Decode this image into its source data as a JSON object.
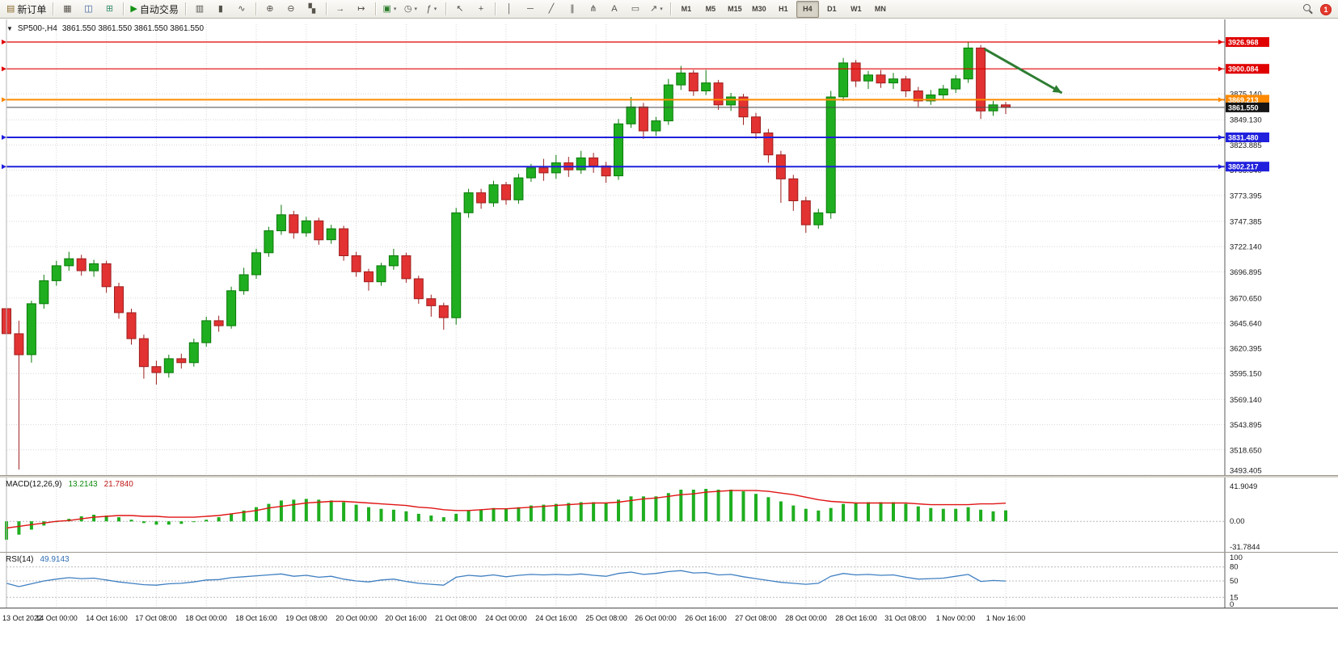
{
  "window": {
    "notifications": "1"
  },
  "toolbar": {
    "groups": [
      {
        "name": "order",
        "items": [
          {
            "name": "new-order-button",
            "label": "新订单",
            "icon": "new-order-icon"
          }
        ]
      },
      {
        "name": "panels",
        "items": [
          {
            "name": "market-depth-button",
            "icon": "book-icon"
          },
          {
            "name": "data-window-button",
            "icon": "window-icon"
          },
          {
            "name": "strategy-tester-button",
            "icon": "tester-icon"
          }
        ]
      },
      {
        "name": "algo",
        "items": [
          {
            "name": "algo-trading-button",
            "label": "自动交易",
            "icon": "play-icon"
          }
        ]
      },
      {
        "name": "chart-type",
        "items": [
          {
            "name": "bar-chart-button",
            "icon": "bars-icon"
          },
          {
            "name": "candle-chart-button",
            "icon": "candles-icon"
          },
          {
            "name": "line-chart-button",
            "icon": "line-icon"
          }
        ]
      },
      {
        "name": "zoom",
        "items": [
          {
            "name": "zoom-in-button",
            "icon": "zoom-in-icon"
          },
          {
            "name": "zoom-out-button",
            "icon": "zoom-out-icon"
          },
          {
            "name": "tile-windows-button",
            "icon": "tile-icon"
          }
        ]
      },
      {
        "name": "scroll",
        "items": [
          {
            "name": "auto-scroll-button",
            "icon": "autoscroll-icon"
          },
          {
            "name": "chart-shift-button",
            "icon": "shift-icon"
          }
        ]
      },
      {
        "name": "new-objects",
        "items": [
          {
            "name": "new-chart-button",
            "icon": "new-chart-icon",
            "dropdown": true
          },
          {
            "name": "period-button",
            "icon": "clock-icon",
            "dropdown": true
          },
          {
            "name": "indicators-button",
            "icon": "indicator-icon",
            "dropdown": true
          }
        ]
      },
      {
        "name": "cursor-tools",
        "items": [
          {
            "name": "cursor-button",
            "icon": "cursor-icon"
          },
          {
            "name": "crosshair-button",
            "icon": "crosshair-icon"
          }
        ]
      },
      {
        "name": "draw-tools",
        "items": [
          {
            "name": "vertical-line-button",
            "icon": "vline-icon"
          },
          {
            "name": "horizontal-line-button",
            "icon": "hline-icon"
          },
          {
            "name": "trendline-button",
            "icon": "trendline-icon"
          },
          {
            "name": "equidistant-channel-button",
            "icon": "channel-icon"
          },
          {
            "name": "andrews-pitchfork-button",
            "icon": "pitchfork-icon"
          },
          {
            "name": "text-button",
            "icon": "text-icon"
          },
          {
            "name": "shapes-button",
            "icon": "shapes-icon"
          },
          {
            "name": "arrows-button",
            "icon": "arrow-icon",
            "dropdown": true
          }
        ]
      },
      {
        "name": "timeframes",
        "items": [
          {
            "name": "timeframe-m1",
            "label": "M1"
          },
          {
            "name": "timeframe-m5",
            "label": "M5"
          },
          {
            "name": "timeframe-m15",
            "label": "M15"
          },
          {
            "name": "timeframe-m30",
            "label": "M30"
          },
          {
            "name": "timeframe-h1",
            "label": "H1"
          },
          {
            "name": "timeframe-h4",
            "label": "H4",
            "active": true
          },
          {
            "name": "timeframe-d1",
            "label": "D1"
          },
          {
            "name": "timeframe-w1",
            "label": "W1"
          },
          {
            "name": "timeframe-mn",
            "label": "MN"
          }
        ]
      }
    ]
  },
  "chart": {
    "title": "SP500-,H4",
    "ohlc": "3861.550 3861.550 3861.550 3861.550"
  },
  "chart_data": {
    "type": "candlestick",
    "symbol": "SP500-",
    "period": "H4",
    "y_axis": {
      "anchor_top": 3926.968,
      "anchor_bottom": 3493.405,
      "ticks": [
        "3875.140",
        "3849.130",
        "3823.885",
        "3798.640",
        "3773.395",
        "3747.385",
        "3722.140",
        "3696.895",
        "3670.650",
        "3645.640",
        "3620.395",
        "3595.150",
        "3569.140",
        "3543.895",
        "3518.650",
        "3493.405"
      ]
    },
    "x_labels": [
      [
        0,
        "13 Oct 2022"
      ],
      [
        4,
        "14 Oct 00:00"
      ],
      [
        8,
        "14 Oct 16:00"
      ],
      [
        12,
        "17 Oct 08:00"
      ],
      [
        16,
        "18 Oct 00:00"
      ],
      [
        20,
        "18 Oct 16:00"
      ],
      [
        24,
        "19 Oct 08:00"
      ],
      [
        28,
        "20 Oct 00:00"
      ],
      [
        32,
        "20 Oct 16:00"
      ],
      [
        36,
        "21 Oct 08:00"
      ],
      [
        40,
        "24 Oct 00:00"
      ],
      [
        44,
        "24 Oct 16:00"
      ],
      [
        48,
        "25 Oct 08:00"
      ],
      [
        52,
        "26 Oct 00:00"
      ],
      [
        56,
        "26 Oct 16:00"
      ],
      [
        60,
        "27 Oct 08:00"
      ],
      [
        64,
        "28 Oct 00:00"
      ],
      [
        68,
        "28 Oct 16:00"
      ],
      [
        72,
        "31 Oct 08:00"
      ],
      [
        76,
        "1 Nov 00:00"
      ],
      [
        80,
        "1 Nov 16:00"
      ]
    ],
    "candles": [
      [
        3660,
        3665,
        3628,
        3635
      ],
      [
        3635,
        3648,
        3499,
        3614
      ],
      [
        3614,
        3668,
        3606,
        3665
      ],
      [
        3665,
        3694,
        3660,
        3688
      ],
      [
        3688,
        3708,
        3683,
        3703
      ],
      [
        3703,
        3717,
        3698,
        3710
      ],
      [
        3710,
        3714,
        3693,
        3698
      ],
      [
        3698,
        3709,
        3692,
        3705
      ],
      [
        3705,
        3708,
        3676,
        3682
      ],
      [
        3682,
        3686,
        3650,
        3656
      ],
      [
        3656,
        3660,
        3624,
        3630
      ],
      [
        3630,
        3634,
        3590,
        3602
      ],
      [
        3602,
        3608,
        3584,
        3596
      ],
      [
        3596,
        3614,
        3591,
        3610
      ],
      [
        3610,
        3615,
        3600,
        3606
      ],
      [
        3606,
        3630,
        3602,
        3626
      ],
      [
        3626,
        3652,
        3622,
        3648
      ],
      [
        3648,
        3653,
        3637,
        3643
      ],
      [
        3643,
        3682,
        3640,
        3678
      ],
      [
        3678,
        3701,
        3674,
        3694
      ],
      [
        3694,
        3720,
        3690,
        3716
      ],
      [
        3716,
        3742,
        3712,
        3738
      ],
      [
        3738,
        3764,
        3734,
        3754
      ],
      [
        3754,
        3758,
        3730,
        3736
      ],
      [
        3736,
        3752,
        3732,
        3748
      ],
      [
        3748,
        3751,
        3724,
        3729
      ],
      [
        3729,
        3744,
        3725,
        3740
      ],
      [
        3740,
        3743,
        3708,
        3713
      ],
      [
        3713,
        3717,
        3692,
        3697
      ],
      [
        3697,
        3700,
        3678,
        3687
      ],
      [
        3687,
        3706,
        3683,
        3703
      ],
      [
        3703,
        3720,
        3699,
        3713
      ],
      [
        3713,
        3716,
        3686,
        3690
      ],
      [
        3690,
        3693,
        3665,
        3670
      ],
      [
        3670,
        3674,
        3652,
        3663
      ],
      [
        3663,
        3666,
        3639,
        3651
      ],
      [
        3651,
        3761,
        3644,
        3756
      ],
      [
        3756,
        3780,
        3751,
        3776
      ],
      [
        3776,
        3780,
        3760,
        3766
      ],
      [
        3766,
        3788,
        3762,
        3784
      ],
      [
        3784,
        3787,
        3764,
        3769
      ],
      [
        3769,
        3795,
        3765,
        3791
      ],
      [
        3791,
        3805,
        3787,
        3801
      ],
      [
        3801,
        3810,
        3788,
        3796
      ],
      [
        3796,
        3814,
        3790,
        3806
      ],
      [
        3806,
        3812,
        3792,
        3799
      ],
      [
        3799,
        3818,
        3795,
        3811
      ],
      [
        3811,
        3816,
        3796,
        3803
      ],
      [
        3803,
        3807,
        3786,
        3793
      ],
      [
        3793,
        3850,
        3789,
        3845
      ],
      [
        3845,
        3872,
        3841,
        3862
      ],
      [
        3862,
        3866,
        3830,
        3838
      ],
      [
        3838,
        3852,
        3833,
        3848
      ],
      [
        3848,
        3890,
        3844,
        3884
      ],
      [
        3884,
        3903,
        3879,
        3896
      ],
      [
        3896,
        3899,
        3873,
        3878
      ],
      [
        3878,
        3899,
        3874,
        3886
      ],
      [
        3886,
        3889,
        3859,
        3864
      ],
      [
        3864,
        3876,
        3858,
        3872
      ],
      [
        3872,
        3875,
        3844,
        3852
      ],
      [
        3852,
        3856,
        3830,
        3836
      ],
      [
        3836,
        3840,
        3806,
        3814
      ],
      [
        3814,
        3818,
        3766,
        3790
      ],
      [
        3790,
        3794,
        3758,
        3768
      ],
      [
        3768,
        3772,
        3736,
        3744
      ],
      [
        3744,
        3760,
        3740,
        3756
      ],
      [
        3756,
        3878,
        3750,
        3872
      ],
      [
        3872,
        3911,
        3868,
        3906
      ],
      [
        3906,
        3909,
        3882,
        3888
      ],
      [
        3888,
        3898,
        3880,
        3894
      ],
      [
        3894,
        3899,
        3881,
        3886
      ],
      [
        3886,
        3896,
        3880,
        3890
      ],
      [
        3890,
        3893,
        3872,
        3878
      ],
      [
        3878,
        3882,
        3862,
        3868
      ],
      [
        3868,
        3879,
        3864,
        3874
      ],
      [
        3874,
        3884,
        3869,
        3880
      ],
      [
        3880,
        3894,
        3876,
        3890
      ],
      [
        3890,
        3927,
        3886,
        3921
      ],
      [
        3921,
        3924,
        3850,
        3858
      ],
      [
        3858,
        3868,
        3853,
        3864
      ],
      [
        3864,
        3867,
        3855,
        3861.55
      ]
    ],
    "levels": [
      {
        "price": 3926.968,
        "label": "3926.968",
        "color": "#e00000",
        "width": 1.2
      },
      {
        "price": 3900.084,
        "label": "3900.084",
        "color": "#e00000",
        "width": 1.2
      },
      {
        "price": 3869.213,
        "label": "3869.213",
        "color": "#ff8a00",
        "width": 2
      },
      {
        "price": 3831.48,
        "label": "3831.480",
        "color": "#2020dd",
        "width": 2
      },
      {
        "price": 3802.217,
        "label": "3802.217",
        "color": "#2020dd",
        "width": 2
      }
    ],
    "current": {
      "price": 3861.55,
      "label": "3861.550"
    },
    "annotation": {
      "type": "arrow",
      "from": {
        "index": 78.3,
        "price": 3920
      },
      "to": {
        "index": 84.5,
        "price": 3876
      },
      "color": "#2e7d32"
    },
    "macd": {
      "title": "MACD(12,26,9)",
      "value_main": "13.2143",
      "value_signal": "21.7840",
      "scale_max": 41.9049,
      "scale_min": -31.7844,
      "scale_labels": [
        "41.9049",
        "0.00",
        "-31.7844"
      ],
      "histogram": [
        -22,
        -16,
        -10,
        -5,
        -1,
        3,
        6,
        8,
        7,
        5,
        2,
        -2,
        -4,
        -4,
        -3,
        -1,
        2,
        5,
        9,
        13,
        17,
        21,
        25,
        26,
        27,
        26,
        25,
        23,
        20,
        17,
        15,
        14,
        12,
        9,
        7,
        5,
        9,
        13,
        14,
        16,
        15,
        17,
        19,
        20,
        21,
        22,
        23,
        23,
        22,
        26,
        30,
        30,
        30,
        34,
        38,
        38,
        39,
        38,
        38,
        36,
        33,
        29,
        24,
        19,
        15,
        13,
        16,
        21,
        22,
        23,
        23,
        23,
        21,
        18,
        16,
        15,
        15,
        17,
        14,
        12,
        13.2
      ],
      "signal": [
        -8,
        -6,
        -4,
        -2,
        0,
        1,
        3,
        5,
        6,
        7,
        7,
        6,
        6,
        5,
        5,
        5,
        6,
        7,
        9,
        11,
        13,
        16,
        18,
        20,
        22,
        23,
        24,
        24,
        23,
        22,
        21,
        20,
        19,
        17,
        16,
        14,
        13,
        13,
        14,
        15,
        15,
        16,
        17,
        18,
        19,
        20,
        21,
        22,
        22,
        23,
        25,
        27,
        28,
        30,
        32,
        33,
        35,
        36,
        37,
        37,
        37,
        36,
        34,
        32,
        29,
        26,
        24,
        23,
        22,
        22,
        22,
        22,
        22,
        21,
        20,
        20,
        20,
        20,
        21,
        21,
        21.8
      ]
    },
    "rsi": {
      "title": "RSI(14)",
      "value": "49.9143",
      "levels": [
        80,
        50,
        15
      ],
      "scale_labels": [
        "100",
        "80",
        "50",
        "15",
        "0"
      ],
      "values": [
        45,
        38,
        44,
        50,
        54,
        57,
        55,
        56,
        52,
        48,
        45,
        42,
        41,
        44,
        45,
        48,
        52,
        53,
        57,
        59,
        61,
        63,
        65,
        60,
        62,
        58,
        60,
        54,
        50,
        48,
        52,
        54,
        49,
        45,
        43,
        41,
        58,
        62,
        60,
        63,
        59,
        62,
        64,
        63,
        64,
        63,
        65,
        62,
        60,
        66,
        69,
        64,
        66,
        70,
        72,
        67,
        68,
        63,
        64,
        59,
        55,
        51,
        47,
        45,
        43,
        45,
        60,
        66,
        63,
        64,
        62,
        63,
        58,
        54,
        55,
        56,
        60,
        64,
        49,
        51,
        49.9
      ]
    }
  }
}
